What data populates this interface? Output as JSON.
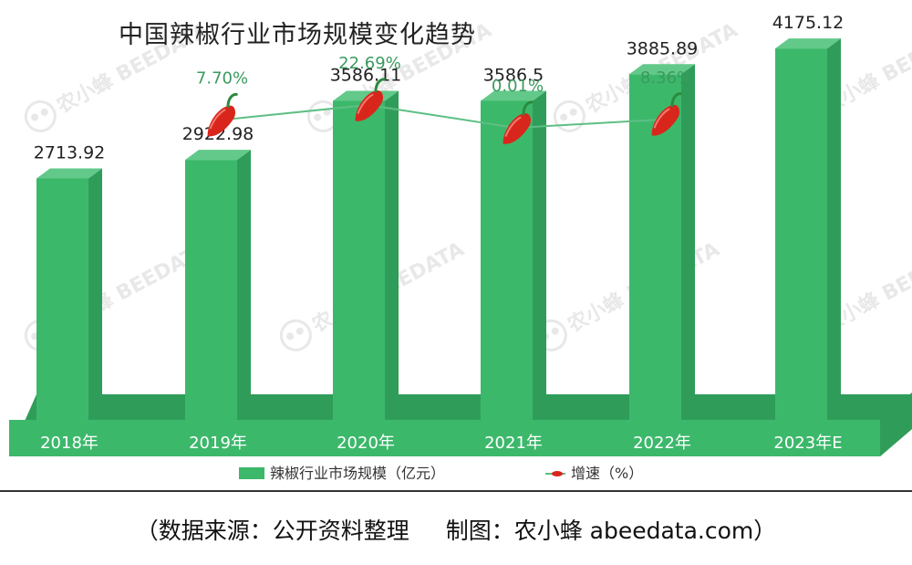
{
  "chart_data": {
    "type": "bar",
    "title": "中国辣椒行业市场规模变化趋势",
    "categories": [
      "2018年",
      "2019年",
      "2020年",
      "2021年",
      "2022年",
      "2023年E"
    ],
    "series": [
      {
        "name": "辣椒行业市场规模（亿元）",
        "values": [
          2713.92,
          2922.98,
          3586.11,
          3586.5,
          3885.89,
          4175.12
        ],
        "value_labels": [
          "2713.92",
          "2922.98",
          "3586.11",
          "3586.5",
          "3885.89",
          "4175.12"
        ],
        "color": "#3cb86b"
      },
      {
        "name": "增速（%）",
        "type": "line",
        "x": [
          "2019年",
          "2020年",
          "2021年",
          "2022年"
        ],
        "values": [
          7.7,
          22.69,
          0.01,
          8.36
        ],
        "value_labels": [
          "7.70%",
          "22.69%",
          "0.01%",
          "8.36%"
        ],
        "color": "#5dbf84",
        "marker": "chili-pepper"
      }
    ],
    "legend_position": "bottom",
    "grid": false
  },
  "watermark": "农小蜂 BEEDATA",
  "footer": {
    "source": "（数据来源：公开资料整理",
    "credit": "制图：农小蜂 abeedata.com）"
  },
  "colors": {
    "bar_front": "#3cb86b",
    "bar_side": "#2f9d59",
    "bar_top": "#62c98a",
    "base_band": "#3cb86b",
    "pepper": "#d9261c",
    "label_green": "#3a9a5e"
  }
}
